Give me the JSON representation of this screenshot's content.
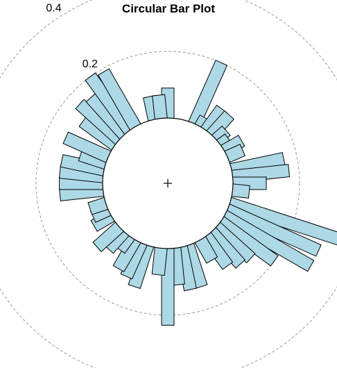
{
  "chart_data": {
    "type": "bar",
    "subtype": "circular",
    "title": "Circular Bar Plot",
    "xlabel": "",
    "ylabel": "",
    "ring_ticks": [
      {
        "value": 0.2,
        "label": "0.2"
      },
      {
        "value": 0.4,
        "label": "0.4"
      }
    ],
    "grid": true,
    "bar_color": "#add8e6",
    "angles_deg": [
      0,
      6,
      12,
      18,
      24,
      30,
      36,
      42,
      48,
      54,
      60,
      66,
      72,
      78,
      84,
      90,
      96,
      102,
      108,
      114,
      120,
      126,
      132,
      138,
      144,
      150,
      156,
      162,
      168,
      174,
      180,
      186,
      192,
      198,
      204,
      210,
      216,
      222,
      228,
      234,
      240,
      246,
      252,
      258,
      264,
      270,
      276,
      282,
      288,
      294,
      300,
      306,
      312,
      318,
      324,
      330,
      336,
      342,
      348,
      354
    ],
    "values": [
      0.09,
      0.0,
      0.0,
      0.0,
      0.2,
      0.03,
      0.08,
      0.08,
      0.04,
      0.03,
      0.06,
      0.05,
      0.0,
      0.16,
      0.17,
      0.1,
      0.05,
      0.0,
      0.43,
      0.3,
      0.3,
      0.2,
      0.14,
      0.13,
      0.11,
      0.07,
      0.0,
      0.13,
      0.13,
      0.11,
      0.23,
      0.08,
      0.0,
      0.13,
      0.11,
      0.1,
      0.05,
      0.07,
      0.09,
      0.0,
      0.06,
      0.05,
      0.05,
      0.0,
      0.13,
      0.13,
      0.13,
      0.13,
      0.08,
      0.14,
      0.0,
      0.12,
      0.16,
      0.15,
      0.2,
      0.19,
      0.0,
      0.0,
      0.07,
      0.07
    ]
  }
}
